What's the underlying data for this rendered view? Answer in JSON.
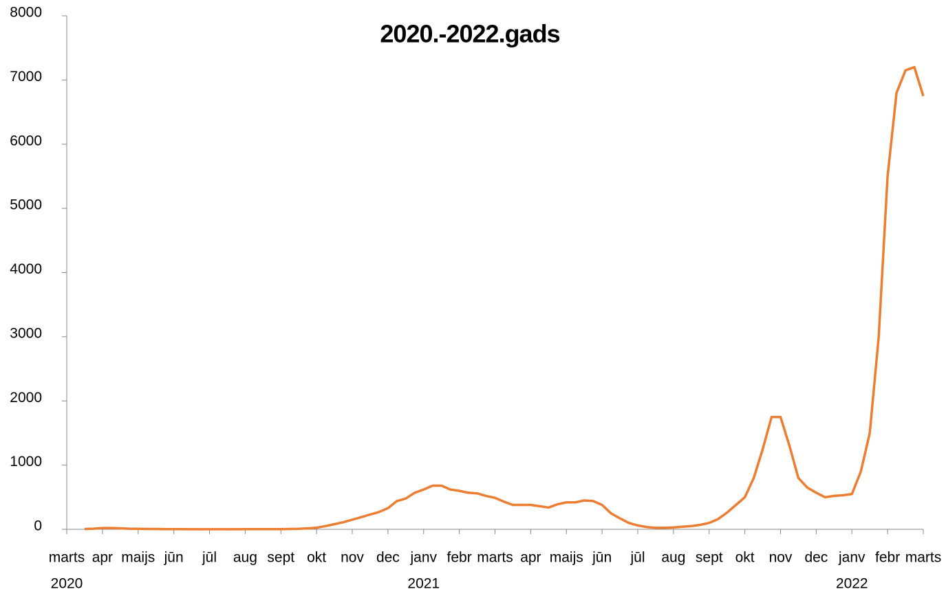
{
  "chart_data": {
    "type": "line",
    "title": "2020.-2022.gads",
    "x": [
      "marts",
      null,
      null,
      null,
      "apr",
      null,
      null,
      null,
      "maijs",
      null,
      null,
      null,
      "jūn",
      null,
      null,
      null,
      "jūl",
      null,
      null,
      null,
      "aug",
      null,
      null,
      null,
      "sept",
      null,
      null,
      null,
      "okt",
      null,
      null,
      null,
      "nov",
      null,
      null,
      null,
      "dec",
      null,
      null,
      null,
      "janv",
      null,
      null,
      null,
      "febr",
      null,
      null,
      null,
      "marts",
      null,
      null,
      null,
      "apr",
      null,
      null,
      null,
      "maijs",
      null,
      null,
      null,
      "jūn",
      null,
      null,
      null,
      "jūl",
      null,
      null,
      null,
      "aug",
      null,
      null,
      null,
      "sept",
      null,
      null,
      null,
      "okt",
      null,
      null,
      null,
      "nov",
      null,
      null,
      null,
      "dec",
      null,
      null,
      null,
      "janv",
      null,
      null,
      null,
      "febr",
      null,
      null,
      null,
      "marts"
    ],
    "years": [
      "2020",
      "2021",
      "2022"
    ],
    "series": [
      {
        "color": "#ed7d31",
        "values": [
          null,
          null,
          5,
          10,
          20,
          20,
          15,
          10,
          8,
          5,
          5,
          3,
          2,
          2,
          1,
          1,
          1,
          1,
          1,
          1,
          2,
          2,
          2,
          3,
          3,
          5,
          8,
          15,
          25,
          50,
          80,
          110,
          150,
          190,
          230,
          270,
          330,
          440,
          480,
          570,
          620,
          680,
          680,
          620,
          600,
          570,
          560,
          520,
          490,
          430,
          380,
          380,
          380,
          360,
          340,
          390,
          420,
          420,
          450,
          440,
          380,
          250,
          170,
          100,
          60,
          35,
          25,
          25,
          30,
          40,
          50,
          70,
          100,
          160,
          260,
          380,
          500,
          800,
          1250,
          1750,
          1750,
          1300,
          800,
          650,
          570,
          500,
          520,
          530,
          550,
          900,
          1500,
          3000,
          5500,
          6800,
          7150,
          7200,
          6750
        ]
      }
    ],
    "ylim": [
      0,
      8000
    ],
    "yticks": [
      0,
      1000,
      2000,
      3000,
      4000,
      5000,
      6000,
      7000,
      8000
    ],
    "grid": false
  }
}
